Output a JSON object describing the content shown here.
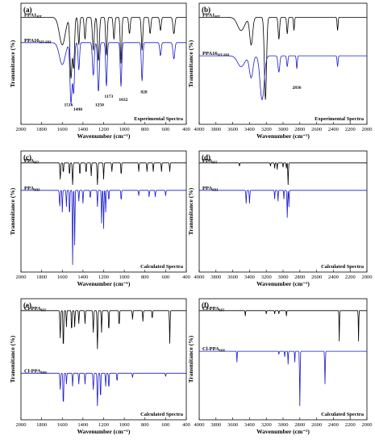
{
  "figure": {
    "ylabel": "Transmitance (%)"
  },
  "chart_data": [
    {
      "id": "a",
      "type": "line",
      "panel_label": "(a)",
      "xlabel": "Wavenumber (cm⁻¹)",
      "ylabel": "Transmitance (%)",
      "xlim": [
        2000,
        400
      ],
      "x_ticks": [
        "2000",
        "1800",
        "1600",
        "1400",
        "1200",
        "1000",
        "800",
        "600",
        "400"
      ],
      "spectra_label": "Experimental Spectra",
      "series": [
        {
          "name": "PPA1",
          "sub": "HT",
          "color": "#000000",
          "base": 0.07,
          "peaks": [
            [
              1600,
              0.25,
              40
            ],
            [
              1516,
              0.55,
              14
            ],
            [
              1490,
              0.45,
              12
            ],
            [
              1440,
              0.25,
              10
            ],
            [
              1380,
              0.2,
              10
            ],
            [
              1300,
              0.3,
              12
            ],
            [
              1250,
              0.4,
              12
            ],
            [
              1173,
              0.35,
              10
            ],
            [
              1100,
              0.2,
              10
            ],
            [
              1032,
              0.42,
              10
            ],
            [
              950,
              0.15,
              10
            ],
            [
              828,
              0.3,
              10
            ],
            [
              750,
              0.15,
              10
            ],
            [
              650,
              0.12,
              10
            ],
            [
              520,
              0.15,
              12
            ]
          ]
        },
        {
          "name": "PPA16",
          "sub": "HT-HH",
          "color": "#1a1acc",
          "base": 0.3,
          "peaks": [
            [
              1600,
              0.2,
              40
            ],
            [
              1516,
              0.55,
              14
            ],
            [
              1490,
              0.45,
              12
            ],
            [
              1440,
              0.25,
              10
            ],
            [
              1300,
              0.3,
              12
            ],
            [
              1250,
              0.45,
              12
            ],
            [
              1173,
              0.4,
              10
            ],
            [
              1032,
              0.4,
              10
            ],
            [
              828,
              0.35,
              10
            ],
            [
              650,
              0.12,
              10
            ],
            [
              520,
              0.15,
              12
            ]
          ]
        }
      ],
      "annotations": [
        {
          "text": "1516",
          "x": 1540,
          "y": 0.88
        },
        {
          "text": "1490",
          "x": 1450,
          "y": 0.92
        },
        {
          "text": "1250",
          "x": 1240,
          "y": 0.88
        },
        {
          "text": "1173",
          "x": 1150,
          "y": 0.8
        },
        {
          "text": "1032",
          "x": 1010,
          "y": 0.83
        },
        {
          "text": "828",
          "x": 810,
          "y": 0.76
        }
      ]
    },
    {
      "id": "b",
      "type": "line",
      "panel_label": "(b)",
      "xlabel": "Wavenumber (cm⁻¹)",
      "ylabel": "Transmitance (%)",
      "xlim": [
        4000,
        2000
      ],
      "x_ticks": [
        "4000",
        "3800",
        "3600",
        "3400",
        "3200",
        "3000",
        "2800",
        "2600",
        "2400",
        "2200",
        "2000"
      ],
      "spectra_label": "Experimental Spectra",
      "series": [
        {
          "name": "PPA1",
          "sub": "HT",
          "color": "#000000",
          "base": 0.07,
          "peaks": [
            [
              3500,
              0.12,
              60
            ],
            [
              3380,
              0.25,
              25
            ],
            [
              3210,
              0.75,
              18
            ],
            [
              3050,
              0.2,
              12
            ],
            [
              2950,
              0.15,
              10
            ],
            [
              2870,
              0.12,
              8
            ],
            [
              2350,
              0.12,
              8
            ]
          ]
        },
        {
          "name": "PPA16",
          "sub": "HT-HH",
          "color": "#1a1acc",
          "base": 0.42,
          "peaks": [
            [
              3500,
              0.1,
              60
            ],
            [
              3380,
              0.2,
              30
            ],
            [
              3250,
              0.4,
              35
            ],
            [
              3050,
              0.15,
              15
            ],
            [
              2950,
              0.1,
              10
            ],
            [
              2836,
              0.12,
              8
            ],
            [
              2350,
              0.1,
              8
            ]
          ]
        }
      ],
      "annotations": [
        {
          "text": "2836",
          "x": 2836,
          "y": 0.72
        }
      ]
    },
    {
      "id": "c",
      "type": "line",
      "panel_label": "(c)",
      "xlabel": "Wavenumber (cm⁻¹)",
      "ylabel": "Transmitance (%)",
      "xlim": [
        2000,
        400
      ],
      "x_ticks": [
        "2000",
        "1800",
        "1600",
        "1400",
        "1200",
        "1000",
        "800",
        "600",
        "400"
      ],
      "spectra_label": "Calculated Spectra",
      "series": [
        {
          "name": "PPA",
          "sub": "HT",
          "color": "#000000",
          "base": 0.05,
          "peaks": [
            [
              1620,
              0.15,
              5
            ],
            [
              1590,
              0.1,
              4
            ],
            [
              1530,
              0.12,
              4
            ],
            [
              1500,
              0.2,
              5
            ],
            [
              1430,
              0.12,
              4
            ],
            [
              1370,
              0.1,
              4
            ],
            [
              1320,
              0.12,
              4
            ],
            [
              1260,
              0.2,
              5
            ],
            [
              1200,
              0.15,
              4
            ],
            [
              1120,
              0.08,
              4
            ],
            [
              1030,
              0.12,
              4
            ],
            [
              860,
              0.08,
              4
            ],
            [
              780,
              0.08,
              4
            ],
            [
              720,
              0.08,
              4
            ],
            [
              640,
              0.08,
              4
            ],
            [
              560,
              0.08,
              4
            ]
          ]
        },
        {
          "name": "PPA",
          "sub": "HH",
          "color": "#1a1acc",
          "base": 0.3,
          "peaks": [
            [
              1625,
              0.15,
              5
            ],
            [
              1600,
              0.2,
              4
            ],
            [
              1560,
              0.15,
              4
            ],
            [
              1530,
              0.25,
              4
            ],
            [
              1500,
              0.75,
              4
            ],
            [
              1480,
              0.5,
              4
            ],
            [
              1440,
              0.1,
              4
            ],
            [
              1400,
              0.12,
              4
            ],
            [
              1330,
              0.08,
              4
            ],
            [
              1260,
              0.15,
              4
            ],
            [
              1220,
              0.3,
              4
            ],
            [
              1200,
              0.35,
              4
            ],
            [
              1180,
              0.2,
              4
            ],
            [
              1150,
              0.1,
              4
            ],
            [
              1030,
              0.1,
              4
            ],
            [
              860,
              0.05,
              4
            ],
            [
              760,
              0.06,
              4
            ],
            [
              700,
              0.06,
              4
            ],
            [
              600,
              0.05,
              4
            ]
          ]
        }
      ]
    },
    {
      "id": "d",
      "type": "line",
      "panel_label": "(d)",
      "xlabel": "Wavenumber (cm⁻¹)",
      "ylabel": "Transmitance (%)",
      "xlim": [
        4000,
        2000
      ],
      "x_ticks": [
        "4000",
        "3800",
        "3600",
        "3400",
        "3200",
        "3000",
        "2800",
        "2600",
        "2400",
        "2200",
        "2000"
      ],
      "spectra_label": "Calculated Spectra",
      "series": [
        {
          "name": "PPA",
          "sub": "HT",
          "color": "#000000",
          "base": 0.05,
          "peaks": [
            [
              3520,
              0.03,
              4
            ],
            [
              3150,
              0.03,
              4
            ],
            [
              3100,
              0.05,
              4
            ],
            [
              3070,
              0.06,
              4
            ],
            [
              3000,
              0.04,
              4
            ],
            [
              2960,
              0.05,
              4
            ],
            [
              2940,
              0.2,
              5
            ]
          ]
        },
        {
          "name": "PPA",
          "sub": "HH",
          "color": "#1a1acc",
          "base": 0.3,
          "peaks": [
            [
              3440,
              0.12,
              5
            ],
            [
              3400,
              0.12,
              5
            ],
            [
              3100,
              0.08,
              4
            ],
            [
              3060,
              0.1,
              4
            ],
            [
              2990,
              0.08,
              4
            ],
            [
              2950,
              0.25,
              5
            ],
            [
              2930,
              0.15,
              4
            ]
          ]
        }
      ]
    },
    {
      "id": "e",
      "type": "line",
      "panel_label": "(e)",
      "xlabel": "Wavenumber (cm⁻¹)",
      "ylabel": "Transmitance (%)",
      "xlim": [
        2000,
        400
      ],
      "x_ticks": [
        "2000",
        "1800",
        "1600",
        "1400",
        "1200",
        "1000",
        "800",
        "600",
        "400"
      ],
      "spectra_label": "Calculated Spectra",
      "series": [
        {
          "name": "Cl-PPA",
          "sub": "HT",
          "color": "#000000",
          "base": 0.05,
          "peaks": [
            [
              1620,
              0.25,
              5
            ],
            [
              1590,
              0.35,
              5
            ],
            [
              1560,
              0.15,
              4
            ],
            [
              1510,
              0.2,
              4
            ],
            [
              1480,
              0.15,
              4
            ],
            [
              1440,
              0.12,
              4
            ],
            [
              1380,
              0.12,
              4
            ],
            [
              1300,
              0.2,
              5
            ],
            [
              1260,
              0.35,
              5
            ],
            [
              1220,
              0.2,
              4
            ],
            [
              1150,
              0.2,
              4
            ],
            [
              1050,
              0.15,
              4
            ],
            [
              920,
              0.08,
              4
            ],
            [
              820,
              0.1,
              4
            ],
            [
              730,
              0.08,
              4
            ],
            [
              560,
              0.3,
              4
            ]
          ]
        },
        {
          "name": "Cl-PPA",
          "sub": "HH",
          "color": "#1a1acc",
          "base": 0.62,
          "peaks": [
            [
              1620,
              0.15,
              5
            ],
            [
              1590,
              0.3,
              5
            ],
            [
              1560,
              0.1,
              4
            ],
            [
              1500,
              0.12,
              4
            ],
            [
              1440,
              0.1,
              4
            ],
            [
              1380,
              0.1,
              4
            ],
            [
              1300,
              0.15,
              5
            ],
            [
              1260,
              0.3,
              5
            ],
            [
              1230,
              0.25,
              4
            ],
            [
              1180,
              0.12,
              4
            ],
            [
              1150,
              0.15,
              4
            ],
            [
              1070,
              0.08,
              4
            ],
            [
              920,
              0.04,
              4
            ],
            [
              600,
              0.03,
              4
            ]
          ]
        }
      ]
    },
    {
      "id": "f",
      "type": "line",
      "panel_label": "(f)",
      "xlabel": "Wavenumber (cm⁻¹)",
      "ylabel": "Transmitance (%)",
      "xlim": [
        4000,
        2000
      ],
      "x_ticks": [
        "4000",
        "3800",
        "3600",
        "3400",
        "3200",
        "3000",
        "2800",
        "2600",
        "2400",
        "2200",
        "2000"
      ],
      "spectra_label": "Calculated Spectra",
      "series": [
        {
          "name": "Cl-PPA",
          "sub": "HT",
          "color": "#000000",
          "base": 0.05,
          "peaks": [
            [
              3450,
              0.05,
              4
            ],
            [
              3200,
              0.03,
              4
            ],
            [
              3100,
              0.03,
              4
            ],
            [
              3050,
              0.03,
              4
            ],
            [
              2960,
              0.05,
              4
            ],
            [
              2330,
              0.28,
              4
            ],
            [
              2100,
              0.28,
              4
            ]
          ]
        },
        {
          "name": "Cl-PPA",
          "sub": "HH",
          "color": "#1a1acc",
          "base": 0.42,
          "peaks": [
            [
              3550,
              0.1,
              4
            ],
            [
              3050,
              0.03,
              4
            ],
            [
              2980,
              0.05,
              4
            ],
            [
              2940,
              0.12,
              4
            ],
            [
              2860,
              0.1,
              4
            ],
            [
              2800,
              0.5,
              5
            ],
            [
              2500,
              0.3,
              5
            ]
          ]
        }
      ]
    }
  ]
}
